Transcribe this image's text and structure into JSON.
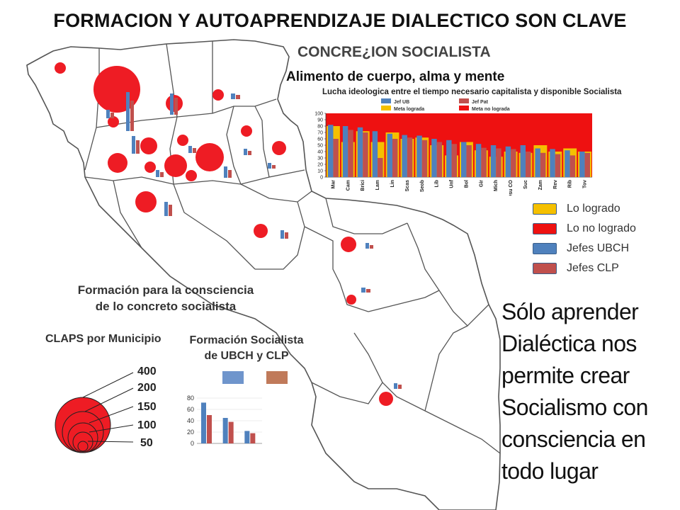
{
  "slide": {
    "title": "FORMACION Y AUTOAPRENDIZAJE  DIALECTICO SON  CLAVE",
    "statement": "Sólo aprender Dialéctica nos permite crear Socialismo con consciencia en todo lugar"
  },
  "panel_top": {
    "title": "CONCRE¿ION SOCIALISTA",
    "subtitle": "Alimento de cuerpo, alma y mente",
    "chart_title": "Lucha ideologica entre el tiempo necesario capitalista y disponible Socialista"
  },
  "legend": [
    {
      "label": "Lo logrado",
      "color": "#f5c000"
    },
    {
      "label": "Lo no logrado",
      "color": "#ee1111"
    },
    {
      "label": "Jefes UBCH",
      "color": "#4f81bd"
    },
    {
      "label": "Jefes CLP",
      "color": "#c0504d"
    }
  ],
  "panel_bottom": {
    "title_line1": "Formación para la consciencia",
    "title_line2": "de lo concreto socialista",
    "claps_title": "CLAPS por Municipio",
    "formacion_line1": "Formación Socialista",
    "formacion_line2": "de UBCH y CLP",
    "size_scale": [
      "400",
      "200",
      "150",
      "100",
      "50"
    ]
  },
  "colors": {
    "map_fill": "#ffffff",
    "map_border": "#555555",
    "bubble": "#ee1c24",
    "ubch": "#4f81bd",
    "clp": "#c0504d",
    "gold": "#f5c000"
  },
  "chart_data": [
    {
      "type": "bar",
      "title": "Lucha ideologica entre el tiempo necesario capitalista y disponible Socialista",
      "categories": [
        "Mar",
        "Cam",
        "Brici",
        "Lam",
        "Lin",
        "Scas",
        "Seob",
        "Lib",
        "Unf",
        "Bol",
        "Gir",
        "Mich",
        "Osu CO",
        "Suc",
        "Zam",
        "Rev",
        "Rib",
        "Tov"
      ],
      "series": [
        {
          "name": "Jef UB",
          "color": "#4f81bd",
          "values": [
            82,
            80,
            78,
            72,
            68,
            66,
            65,
            60,
            58,
            55,
            52,
            50,
            48,
            50,
            45,
            44,
            42,
            40
          ]
        },
        {
          "name": "Jef Pat",
          "color": "#c0504d",
          "values": [
            60,
            74,
            70,
            30,
            60,
            62,
            58,
            55,
            52,
            50,
            46,
            45,
            44,
            40,
            38,
            36,
            34,
            38
          ]
        },
        {
          "name": "Meta  lograda",
          "color": "#f5c000",
          "values": [
            80,
            55,
            72,
            55,
            70,
            60,
            62,
            50,
            34,
            55,
            42,
            32,
            40,
            38,
            50,
            40,
            45,
            40
          ]
        },
        {
          "name": "Meta no lograda",
          "color": "#ee1111",
          "values": [
            20,
            45,
            28,
            45,
            30,
            40,
            38,
            50,
            66,
            45,
            58,
            68,
            60,
            62,
            50,
            60,
            55,
            60
          ]
        }
      ],
      "ylim": [
        0,
        100
      ],
      "yticks": [
        "0",
        "10",
        "20",
        "30",
        "40",
        "50",
        "60",
        "70",
        "80",
        "90",
        "100"
      ]
    },
    {
      "type": "bar",
      "title": "Formación Socialista de UBCH y CLP",
      "categories": [
        "",
        "",
        ""
      ],
      "series": [
        {
          "name": "UBCH",
          "color": "#4f81bd",
          "values": [
            72,
            45,
            22
          ]
        },
        {
          "name": "CLP",
          "color": "#c0504d",
          "values": [
            50,
            38,
            18
          ]
        }
      ],
      "ylim": [
        0,
        80
      ],
      "yticks": [
        "0",
        "20",
        "40",
        "60",
        "80"
      ]
    }
  ]
}
